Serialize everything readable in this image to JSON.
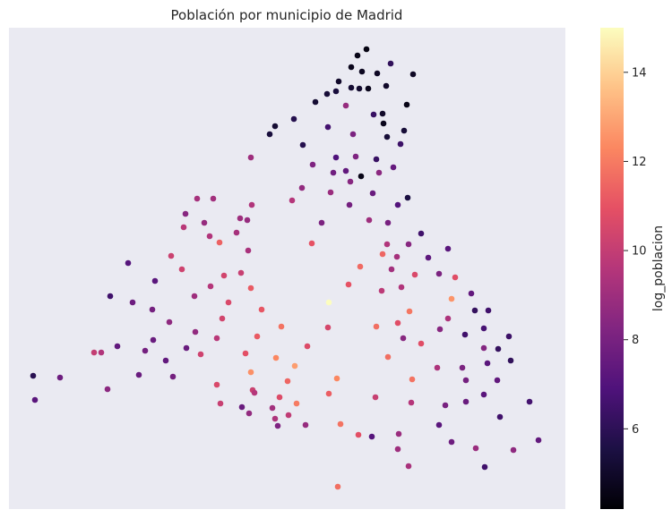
{
  "chart_data": {
    "type": "scatter",
    "title": "Población por municipio de Madrid",
    "colorbar": {
      "label": "log_poblacion",
      "ticks": [
        6,
        8,
        10,
        12,
        14
      ],
      "vmin": 4.2,
      "vmax": 15.0,
      "colormap": "magma"
    },
    "axes_visible": false,
    "background": "#eaeaf2",
    "points": [
      [
        409,
        55,
        4.5
      ],
      [
        399,
        62,
        4.6
      ],
      [
        436,
        71,
        6.1
      ],
      [
        392,
        75,
        4.7
      ],
      [
        404,
        80,
        4.8
      ],
      [
        421,
        82,
        4.9
      ],
      [
        461,
        83,
        4.9
      ],
      [
        378,
        91,
        5.0
      ],
      [
        392,
        98,
        5.2
      ],
      [
        401,
        99,
        5.1
      ],
      [
        411,
        99,
        4.7
      ],
      [
        431,
        96,
        5.0
      ],
      [
        365,
        105,
        5.3
      ],
      [
        375,
        102,
        5.4
      ],
      [
        352,
        114,
        5.2
      ],
      [
        386,
        118,
        8.8
      ],
      [
        454,
        117,
        4.6
      ],
      [
        328,
        133,
        5.8
      ],
      [
        417,
        128,
        6.3
      ],
      [
        427,
        127,
        5.0
      ],
      [
        428,
        138,
        4.7
      ],
      [
        307,
        141,
        5.2
      ],
      [
        366,
        142,
        6.6
      ],
      [
        451,
        146,
        5.3
      ],
      [
        301,
        150,
        5.4
      ],
      [
        394,
        150,
        8.1
      ],
      [
        432,
        153,
        5.3
      ],
      [
        447,
        161,
        6.4
      ],
      [
        338,
        162,
        5.8
      ],
      [
        375,
        176,
        6.9
      ],
      [
        397,
        175,
        8.2
      ],
      [
        420,
        178,
        6.3
      ],
      [
        280,
        176,
        9.0
      ],
      [
        349,
        184,
        8.2
      ],
      [
        439,
        187,
        7.5
      ],
      [
        372,
        193,
        7.8
      ],
      [
        386,
        191,
        7.4
      ],
      [
        403,
        197,
        4.6
      ],
      [
        423,
        193,
        8.5
      ],
      [
        391,
        203,
        8.4
      ],
      [
        337,
        210,
        8.7
      ],
      [
        369,
        215,
        8.9
      ],
      [
        416,
        216,
        7.6
      ],
      [
        455,
        221,
        5.5
      ],
      [
        220,
        222,
        9.2
      ],
      [
        238,
        222,
        9.1
      ],
      [
        326,
        224,
        9.6
      ],
      [
        281,
        229,
        9.5
      ],
      [
        390,
        229,
        7.9
      ],
      [
        444,
        229,
        7.0
      ],
      [
        207,
        239,
        8.4
      ],
      [
        268,
        244,
        9.0
      ],
      [
        276,
        246,
        8.8
      ],
      [
        228,
        249,
        8.8
      ],
      [
        359,
        249,
        8.1
      ],
      [
        412,
        246,
        9.0
      ],
      [
        433,
        249,
        8.0
      ],
      [
        205,
        254,
        9.7
      ],
      [
        264,
        260,
        9.2
      ],
      [
        470,
        261,
        6.5
      ],
      [
        234,
        264,
        9.5
      ],
      [
        245,
        271,
        11.4
      ],
      [
        348,
        272,
        11.0
      ],
      [
        432,
        273,
        9.5
      ],
      [
        456,
        273,
        8.4
      ],
      [
        277,
        280,
        9.3
      ],
      [
        500,
        278,
        7.2
      ],
      [
        427,
        284,
        11.5
      ],
      [
        191,
        286,
        10.2
      ],
      [
        443,
        287,
        9.2
      ],
      [
        478,
        288,
        7.3
      ],
      [
        143,
        294,
        7.1
      ],
      [
        402,
        298,
        11.6
      ],
      [
        437,
        301,
        9.1
      ],
      [
        203,
        301,
        10.3
      ],
      [
        269,
        305,
        10.1
      ],
      [
        250,
        308,
        10.4
      ],
      [
        463,
        307,
        10.6
      ],
      [
        490,
        306,
        8.1
      ],
      [
        508,
        310,
        10.8
      ],
      [
        173,
        314,
        7.2
      ],
      [
        448,
        321,
        9.5
      ],
      [
        235,
        320,
        9.6
      ],
      [
        280,
        322,
        11.2
      ],
      [
        389,
        318,
        11.0
      ],
      [
        426,
        325,
        9.8
      ],
      [
        526,
        328,
        7.4
      ],
      [
        123,
        331,
        6.5
      ],
      [
        217,
        331,
        9.0
      ],
      [
        504,
        334,
        12.6
      ],
      [
        148,
        338,
        7.7
      ],
      [
        255,
        338,
        10.6
      ],
      [
        367,
        338,
        15.0
      ],
      [
        170,
        346,
        7.9
      ],
      [
        292,
        346,
        11.1
      ],
      [
        457,
        348,
        11.9
      ],
      [
        530,
        347,
        6.2
      ],
      [
        545,
        347,
        6.5
      ],
      [
        500,
        356,
        9.4
      ],
      [
        189,
        360,
        8.6
      ],
      [
        248,
        356,
        10.4
      ],
      [
        444,
        361,
        10.8
      ],
      [
        314,
        365,
        11.8
      ],
      [
        366,
        366,
        10.5
      ],
      [
        420,
        365,
        11.7
      ],
      [
        491,
        368,
        8.4
      ],
      [
        540,
        367,
        6.7
      ],
      [
        218,
        371,
        8.7
      ],
      [
        519,
        374,
        6.5
      ],
      [
        568,
        376,
        6.4
      ],
      [
        287,
        376,
        11.2
      ],
      [
        242,
        378,
        9.7
      ],
      [
        171,
        380,
        7.6
      ],
      [
        450,
        378,
        8.4
      ],
      [
        470,
        384,
        10.8
      ],
      [
        131,
        387,
        7.4
      ],
      [
        208,
        389,
        7.6
      ],
      [
        343,
        387,
        10.7
      ],
      [
        540,
        389,
        8.3
      ],
      [
        556,
        390,
        6.2
      ],
      [
        105,
        394,
        10.0
      ],
      [
        113,
        394,
        9.5
      ],
      [
        162,
        392,
        7.9
      ],
      [
        274,
        395,
        10.9
      ],
      [
        224,
        396,
        10.3
      ],
      [
        433,
        399,
        11.7
      ],
      [
        308,
        400,
        12.3
      ],
      [
        185,
        403,
        7.4
      ],
      [
        329,
        409,
        12.8
      ],
      [
        544,
        406,
        7.2
      ],
      [
        570,
        403,
        6.1
      ],
      [
        516,
        411,
        8.1
      ],
      [
        488,
        411,
        9.4
      ],
      [
        37,
        420,
        5.9
      ],
      [
        67,
        422,
        7.7
      ],
      [
        155,
        419,
        7.6
      ],
      [
        193,
        421,
        7.9
      ],
      [
        280,
        416,
        12.5
      ],
      [
        376,
        423,
        12.3
      ],
      [
        321,
        426,
        11.5
      ],
      [
        460,
        424,
        11.8
      ],
      [
        520,
        425,
        7.9
      ],
      [
        555,
        425,
        7.4
      ],
      [
        242,
        430,
        10.6
      ],
      [
        120,
        435,
        8.5
      ],
      [
        282,
        436,
        10.2
      ],
      [
        367,
        440,
        11.3
      ],
      [
        284,
        439,
        9.6
      ],
      [
        540,
        441,
        7.2
      ],
      [
        312,
        444,
        10.7
      ],
      [
        419,
        444,
        10.1
      ],
      [
        39,
        447,
        7.2
      ],
      [
        331,
        451,
        12.0
      ],
      [
        246,
        451,
        10.1
      ],
      [
        459,
        450,
        9.6
      ],
      [
        520,
        449,
        7.6
      ],
      [
        497,
        453,
        8.0
      ],
      [
        270,
        455,
        7.6
      ],
      [
        304,
        456,
        9.1
      ],
      [
        591,
        449,
        6.6
      ],
      [
        278,
        462,
        8.7
      ],
      [
        322,
        464,
        9.9
      ],
      [
        307,
        468,
        9.4
      ],
      [
        558,
        466,
        6.5
      ],
      [
        341,
        475,
        8.8
      ],
      [
        380,
        474,
        11.8
      ],
      [
        310,
        476,
        8.2
      ],
      [
        490,
        475,
        7.2
      ],
      [
        400,
        486,
        10.9
      ],
      [
        415,
        488,
        7.1
      ],
      [
        445,
        485,
        8.9
      ],
      [
        601,
        492,
        7.4
      ],
      [
        504,
        494,
        7.7
      ],
      [
        444,
        502,
        9.0
      ],
      [
        531,
        501,
        8.9
      ],
      [
        573,
        503,
        8.6
      ],
      [
        456,
        521,
        9.3
      ],
      [
        541,
        522,
        6.5
      ],
      [
        377,
        544,
        11.7
      ]
    ]
  }
}
